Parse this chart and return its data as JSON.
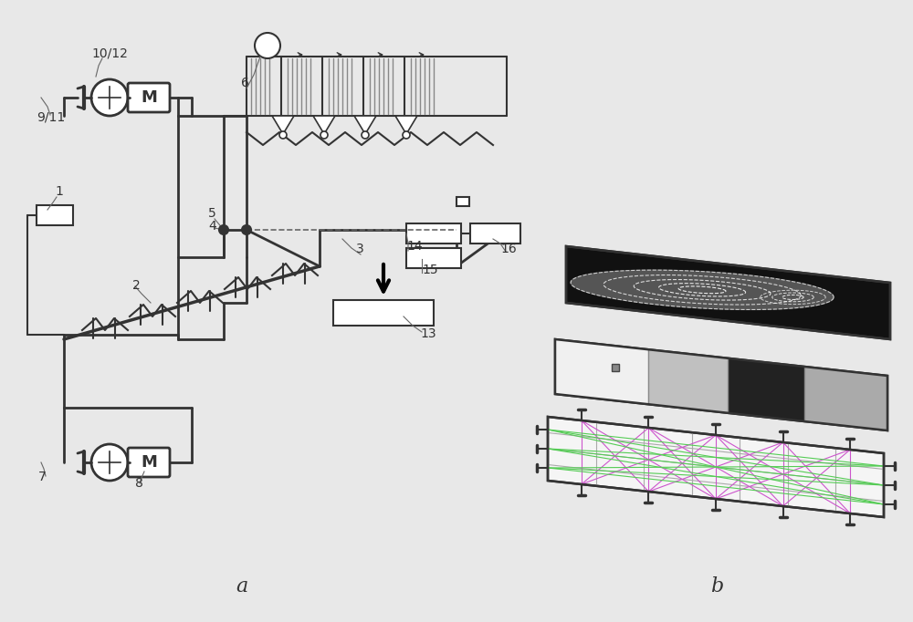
{
  "bg_color": "#e0e0e0",
  "line_color": "#666666",
  "dark_line": "#333333",
  "fig_width": 10.0,
  "fig_height": 6.82,
  "label_a": "a",
  "label_b": "b"
}
